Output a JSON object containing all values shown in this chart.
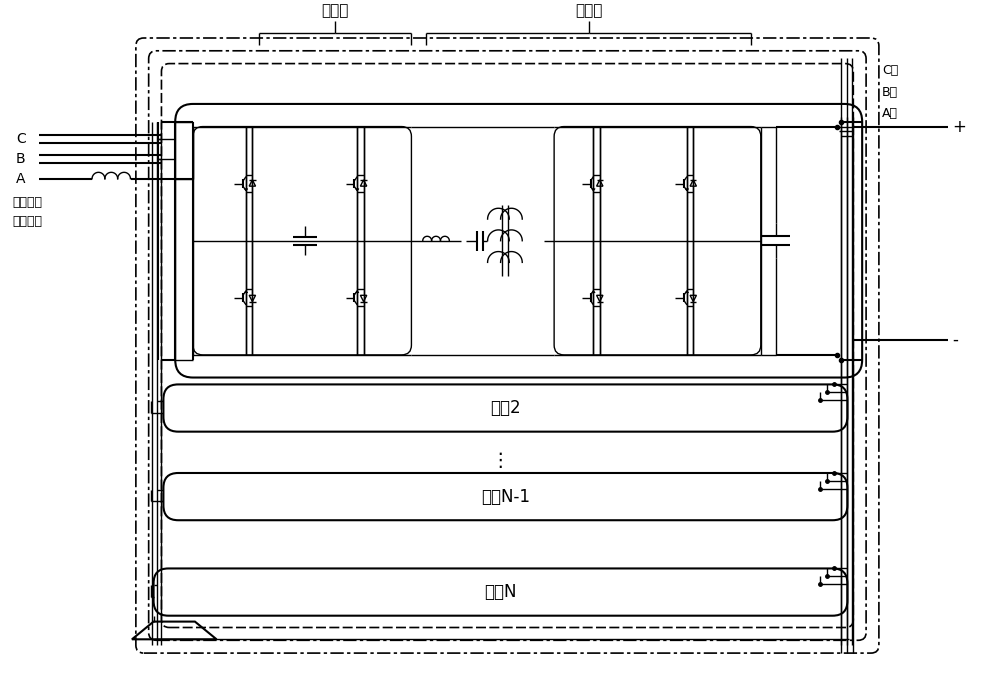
{
  "bg_color": "#ffffff",
  "lc": "#000000",
  "label_ruji": "输入级",
  "label_geji": "隔离级",
  "label_C_xiang": "C相",
  "label_B_xiang": "B相",
  "label_A_xiang": "A相",
  "label_zhongao": "中、高压\n交流端口",
  "label_C_line": "C",
  "label_B_line": "B",
  "label_A_line": "A",
  "label_moz2": "模组2",
  "label_mozN1": "模组N-1",
  "label_mozN": "模组N",
  "label_plus": "+",
  "label_minus": "-",
  "label_dots": "⋮"
}
